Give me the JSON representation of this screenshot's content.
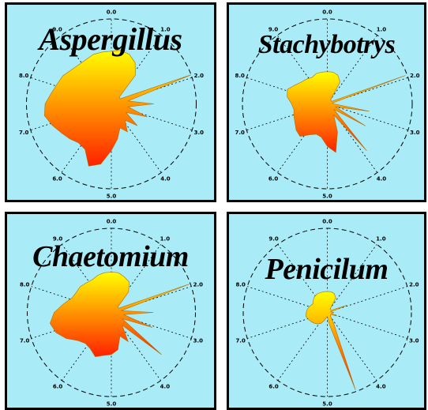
{
  "chart_data": [
    {
      "type": "radar",
      "title": "Aspergillus",
      "tick_labels": [
        "0.0",
        "1.0",
        "2.0",
        "3.0",
        "4.0",
        "5.0",
        "6.0",
        "7.0",
        "8.0",
        "9.0"
      ],
      "angle_range": [
        0,
        10
      ],
      "radius_range": [
        0,
        1
      ],
      "fill_colors": [
        "#ffff00",
        "#ff2000"
      ],
      "values": [
        0.62,
        0.64,
        0.62,
        0.56,
        0.44,
        0.12,
        0.12,
        1.0,
        0.2,
        0.5,
        0.2,
        0.45,
        0.2,
        0.4,
        0.25,
        0.38,
        0.3,
        0.42,
        0.55,
        0.72,
        0.78,
        0.62,
        0.6,
        0.64,
        0.68,
        0.74,
        0.8,
        0.78,
        0.72,
        0.68,
        0.66,
        0.62,
        0.6,
        0.6,
        0.62,
        0.62
      ]
    },
    {
      "type": "radar",
      "title": "Stachybotrys",
      "tick_labels": [
        "0.0",
        "1.0",
        "2.0",
        "3.0",
        "4.0",
        "5.0",
        "6.0",
        "7.0",
        "8.0",
        "9.0"
      ],
      "angle_range": [
        0,
        10
      ],
      "radius_range": [
        0,
        1
      ],
      "fill_colors": [
        "#ffff00",
        "#ff2000"
      ],
      "values": [
        0.38,
        0.38,
        0.36,
        0.3,
        0.06,
        0.06,
        0.06,
        0.98,
        0.06,
        0.08,
        0.5,
        0.1,
        0.52,
        0.1,
        0.72,
        0.15,
        0.35,
        0.58,
        0.5,
        0.4,
        0.38,
        0.42,
        0.5,
        0.48,
        0.44,
        0.42,
        0.4,
        0.42,
        0.48,
        0.5,
        0.44,
        0.4,
        0.38,
        0.36,
        0.38,
        0.38
      ]
    },
    {
      "type": "radar",
      "title": "Chaetomium",
      "tick_labels": [
        "0.0",
        "1.0",
        "2.0",
        "3.0",
        "4.0",
        "5.0",
        "6.0",
        "7.0",
        "8.0",
        "9.0"
      ],
      "angle_range": [
        0,
        10
      ],
      "radius_range": [
        0,
        1
      ],
      "fill_colors": [
        "#ffff00",
        "#ff2000"
      ],
      "values": [
        0.48,
        0.48,
        0.45,
        0.42,
        0.32,
        0.1,
        0.1,
        1.0,
        0.12,
        0.5,
        0.15,
        0.52,
        0.15,
        0.78,
        0.2,
        0.4,
        0.3,
        0.45,
        0.5,
        0.52,
        0.56,
        0.5,
        0.48,
        0.52,
        0.62,
        0.7,
        0.74,
        0.68,
        0.58,
        0.5,
        0.48,
        0.48,
        0.46,
        0.45,
        0.47,
        0.48
      ]
    },
    {
      "type": "radar",
      "title": "Penicilum",
      "tick_labels": [
        "0.0",
        "1.0",
        "2.0",
        "3.0",
        "4.0",
        "5.0",
        "6.0",
        "7.0",
        "8.0",
        "9.0"
      ],
      "angle_range": [
        0,
        10
      ],
      "radius_range": [
        0,
        1
      ],
      "fill_colors": [
        "#ffff00",
        "#ff2000"
      ],
      "values": [
        0.25,
        0.25,
        0.24,
        0.2,
        0.05,
        0.05,
        0.05,
        0.25,
        0.04,
        0.08,
        0.05,
        0.12,
        0.05,
        0.05,
        0.06,
        0.15,
        0.98,
        0.15,
        0.05,
        0.06,
        0.1,
        0.15,
        0.18,
        0.2,
        0.22,
        0.24,
        0.26,
        0.25,
        0.24,
        0.22,
        0.2,
        0.22,
        0.24,
        0.25,
        0.25,
        0.25
      ]
    }
  ]
}
